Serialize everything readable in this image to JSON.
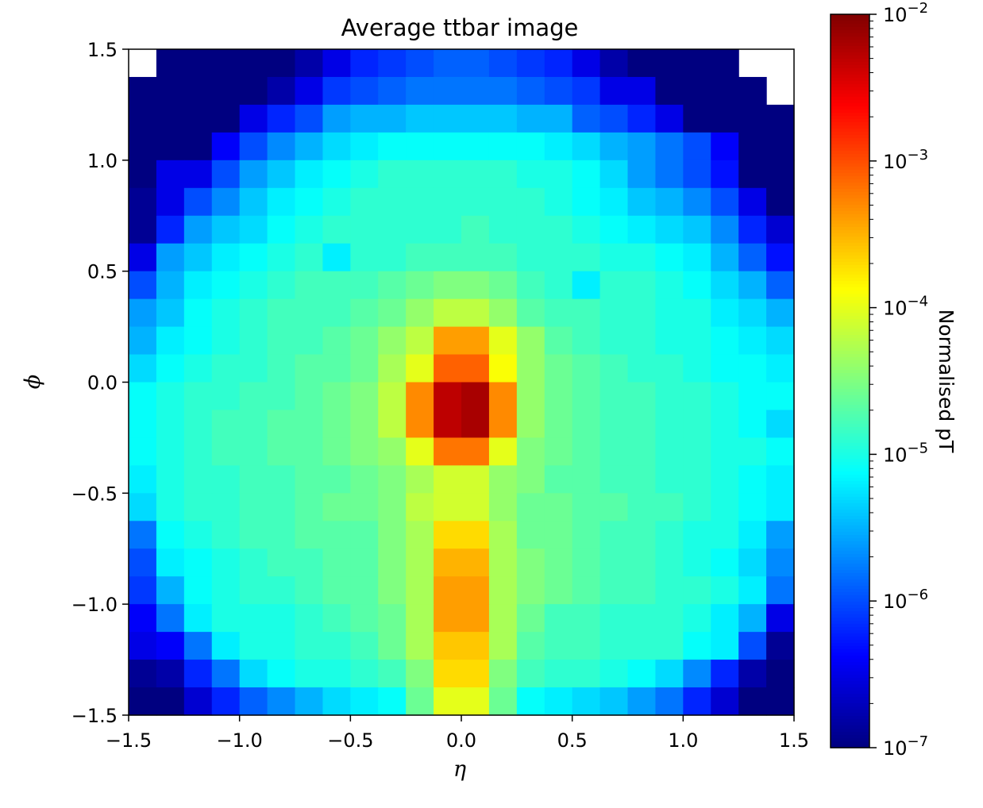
{
  "chart_data": {
    "type": "heatmap",
    "title": "Average ttbar image",
    "xlabel": "η",
    "ylabel": "ϕ",
    "xlim": [
      -1.5,
      1.5
    ],
    "ylim": [
      -1.5,
      1.5
    ],
    "x_ticks": [
      -1.5,
      -1.0,
      -0.5,
      0.0,
      0.5,
      1.0,
      1.5
    ],
    "y_ticks": [
      -1.5,
      -1.0,
      -0.5,
      0.0,
      0.5,
      1.0,
      1.5
    ],
    "x_tick_labels": [
      "−1.5",
      "−1.0",
      "−0.5",
      "0.0",
      "0.5",
      "1.0",
      "1.5"
    ],
    "y_tick_labels": [
      "−1.5",
      "−1.0",
      "−0.5",
      "0.0",
      "0.5",
      "1.0",
      "1.5"
    ],
    "grid": false,
    "colormap": "jet",
    "color_scale": "log",
    "colorbar": {
      "label": "Normalised pT",
      "min": 1e-07,
      "max": 0.01,
      "tick_exponents": [
        -2,
        -3,
        -4,
        -5,
        -6,
        -7
      ],
      "tick_base": "10"
    },
    "n_bins": [
      24,
      24
    ],
    "row_order": "top-to-bottom (phi from 1.5 to -1.5)",
    "log10_values": [
      [
        null,
        -7.0,
        -7.0,
        -7.0,
        -7.0,
        -7.0,
        -6.8,
        -6.5,
        -6.2,
        -6.1,
        -6.0,
        -5.9,
        -5.9,
        -6.0,
        -6.1,
        -6.2,
        -6.5,
        -6.8,
        -7.0,
        -7.0,
        -7.0,
        -7.0,
        null,
        null
      ],
      [
        -7.0,
        -7.0,
        -7.0,
        -7.0,
        -7.0,
        -6.8,
        -6.5,
        -6.1,
        -6.0,
        -5.9,
        -5.8,
        -5.8,
        -5.8,
        -5.8,
        -5.9,
        -6.0,
        -6.1,
        -6.5,
        -6.5,
        -7.0,
        -7.0,
        -7.0,
        -7.0,
        null
      ],
      [
        -7.0,
        -7.0,
        -7.0,
        -7.0,
        -6.5,
        -6.2,
        -6.0,
        -5.6,
        -5.5,
        -5.5,
        -5.4,
        -5.4,
        -5.4,
        -5.4,
        -5.5,
        -5.5,
        -5.9,
        -6.0,
        -6.2,
        -6.5,
        -7.0,
        -7.0,
        -7.0,
        -7.0
      ],
      [
        -7.0,
        -7.0,
        -7.0,
        -6.4,
        -6.0,
        -5.7,
        -5.5,
        -5.3,
        -5.2,
        -5.1,
        -5.1,
        -5.1,
        -5.1,
        -5.1,
        -5.1,
        -5.2,
        -5.3,
        -5.5,
        -5.6,
        -5.8,
        -6.0,
        -6.4,
        -7.0,
        -7.0
      ],
      [
        -7.0,
        -6.5,
        -6.5,
        -6.0,
        -5.6,
        -5.4,
        -5.2,
        -5.1,
        -5.0,
        -4.9,
        -4.9,
        -4.9,
        -4.9,
        -4.9,
        -5.0,
        -5.0,
        -5.1,
        -5.3,
        -5.6,
        -5.8,
        -6.0,
        -6.3,
        -7.0,
        -7.0
      ],
      [
        -6.9,
        -6.5,
        -6.0,
        -5.7,
        -5.4,
        -5.2,
        -5.1,
        -5.0,
        -4.9,
        -4.9,
        -4.9,
        -4.9,
        -4.9,
        -4.9,
        -4.9,
        -5.0,
        -5.1,
        -5.2,
        -5.4,
        -5.5,
        -5.7,
        -6.0,
        -6.5,
        -7.0
      ],
      [
        -6.9,
        -6.2,
        -5.6,
        -5.4,
        -5.3,
        -5.1,
        -5.0,
        -4.9,
        -4.9,
        -4.9,
        -4.9,
        -4.9,
        -4.8,
        -4.9,
        -4.9,
        -4.9,
        -5.0,
        -5.1,
        -5.2,
        -5.3,
        -5.4,
        -5.7,
        -6.2,
        -6.6
      ],
      [
        -6.5,
        -5.6,
        -5.4,
        -5.2,
        -5.1,
        -5.0,
        -4.9,
        -5.2,
        -4.9,
        -4.9,
        -4.8,
        -4.8,
        -4.8,
        -4.8,
        -4.9,
        -4.9,
        -4.9,
        -5.0,
        -5.0,
        -5.1,
        -5.2,
        -5.5,
        -5.9,
        -6.3
      ],
      [
        -6.0,
        -5.5,
        -5.2,
        -5.1,
        -5.0,
        -4.9,
        -4.8,
        -4.8,
        -4.8,
        -4.7,
        -4.6,
        -4.5,
        -4.5,
        -4.6,
        -4.8,
        -4.9,
        -5.2,
        -4.9,
        -4.9,
        -5.0,
        -5.1,
        -5.3,
        -5.5,
        -5.9
      ],
      [
        -5.6,
        -5.4,
        -5.1,
        -5.0,
        -4.9,
        -4.8,
        -4.8,
        -4.8,
        -4.7,
        -4.6,
        -4.4,
        -4.2,
        -4.2,
        -4.4,
        -4.7,
        -4.8,
        -4.8,
        -4.9,
        -4.9,
        -5.0,
        -5.0,
        -5.2,
        -5.3,
        -5.5
      ],
      [
        -5.5,
        -5.2,
        -5.1,
        -5.0,
        -4.9,
        -4.8,
        -4.8,
        -4.7,
        -4.6,
        -4.4,
        -4.2,
        -3.4,
        -3.4,
        -4.0,
        -4.4,
        -4.7,
        -4.8,
        -4.9,
        -4.9,
        -5.0,
        -5.0,
        -5.1,
        -5.2,
        -5.3
      ],
      [
        -5.3,
        -5.1,
        -5.0,
        -4.9,
        -4.9,
        -4.8,
        -4.7,
        -4.7,
        -4.6,
        -4.3,
        -4.0,
        -3.1,
        -3.1,
        -3.9,
        -4.4,
        -4.6,
        -4.7,
        -4.8,
        -4.9,
        -4.9,
        -5.0,
        -5.1,
        -5.1,
        -5.2
      ],
      [
        -5.1,
        -5.0,
        -4.9,
        -4.9,
        -4.8,
        -4.8,
        -4.7,
        -4.6,
        -4.5,
        -4.2,
        -3.3,
        -2.3,
        -2.2,
        -3.3,
        -4.4,
        -4.6,
        -4.7,
        -4.8,
        -4.8,
        -4.9,
        -4.9,
        -5.0,
        -5.1,
        -5.1
      ],
      [
        -5.1,
        -5.0,
        -4.9,
        -4.8,
        -4.8,
        -4.7,
        -4.7,
        -4.6,
        -4.5,
        -4.2,
        -3.3,
        -2.3,
        -2.2,
        -3.3,
        -4.4,
        -4.6,
        -4.7,
        -4.8,
        -4.8,
        -4.9,
        -4.9,
        -5.0,
        -5.1,
        -5.3
      ],
      [
        -5.1,
        -5.0,
        -4.9,
        -4.8,
        -4.8,
        -4.7,
        -4.7,
        -4.6,
        -4.5,
        -4.4,
        -4.0,
        -3.2,
        -3.2,
        -4.0,
        -4.5,
        -4.6,
        -4.7,
        -4.8,
        -4.8,
        -4.9,
        -4.9,
        -5.0,
        -5.0,
        -5.1
      ],
      [
        -5.2,
        -5.0,
        -4.9,
        -4.9,
        -4.8,
        -4.8,
        -4.7,
        -4.7,
        -4.6,
        -4.5,
        -4.3,
        -4.1,
        -4.1,
        -4.4,
        -4.5,
        -4.7,
        -4.7,
        -4.8,
        -4.8,
        -4.9,
        -4.9,
        -5.0,
        -5.1,
        -5.2
      ],
      [
        -5.3,
        -5.0,
        -4.9,
        -4.9,
        -4.8,
        -4.8,
        -4.7,
        -4.6,
        -4.6,
        -4.5,
        -4.2,
        -4.1,
        -4.1,
        -4.4,
        -4.6,
        -4.6,
        -4.7,
        -4.7,
        -4.8,
        -4.8,
        -4.9,
        -5.0,
        -5.1,
        -5.2
      ],
      [
        -5.8,
        -5.1,
        -5.0,
        -4.9,
        -4.8,
        -4.8,
        -4.7,
        -4.7,
        -4.7,
        -4.5,
        -4.3,
        -3.7,
        -3.7,
        -4.3,
        -4.6,
        -4.6,
        -4.7,
        -4.8,
        -4.8,
        -4.9,
        -5.0,
        -5.0,
        -5.2,
        -5.6
      ],
      [
        -6.0,
        -5.2,
        -5.1,
        -5.0,
        -4.9,
        -4.8,
        -4.8,
        -4.7,
        -4.7,
        -4.5,
        -4.3,
        -3.5,
        -3.5,
        -4.3,
        -4.5,
        -4.6,
        -4.7,
        -4.8,
        -4.8,
        -4.9,
        -5.0,
        -5.1,
        -5.3,
        -5.7
      ],
      [
        -6.1,
        -5.5,
        -5.1,
        -5.0,
        -4.9,
        -4.9,
        -4.8,
        -4.7,
        -4.7,
        -4.5,
        -4.3,
        -3.4,
        -3.4,
        -4.3,
        -4.5,
        -4.6,
        -4.7,
        -4.8,
        -4.8,
        -4.9,
        -4.9,
        -5.0,
        -5.2,
        -5.8
      ],
      [
        -6.4,
        -5.8,
        -5.2,
        -5.0,
        -5.0,
        -5.0,
        -4.9,
        -4.8,
        -4.7,
        -4.6,
        -4.3,
        -3.4,
        -3.4,
        -4.3,
        -4.6,
        -4.8,
        -4.8,
        -4.9,
        -4.9,
        -4.9,
        -5.0,
        -5.2,
        -5.5,
        -6.5
      ],
      [
        -6.5,
        -6.4,
        -5.8,
        -5.2,
        -5.0,
        -5.0,
        -4.9,
        -4.9,
        -4.8,
        -4.6,
        -4.3,
        -3.6,
        -3.6,
        -4.3,
        -4.7,
        -4.8,
        -4.8,
        -4.9,
        -4.9,
        -4.9,
        -5.1,
        -5.2,
        -6.0,
        -6.9
      ],
      [
        -6.9,
        -6.8,
        -6.2,
        -5.8,
        -5.3,
        -5.1,
        -5.0,
        -5.0,
        -4.9,
        -4.8,
        -4.5,
        -3.7,
        -3.7,
        -4.5,
        -4.8,
        -4.9,
        -4.9,
        -5.0,
        -5.1,
        -5.3,
        -5.7,
        -6.2,
        -6.8,
        -7.0
      ],
      [
        -7.0,
        -7.0,
        -6.6,
        -6.2,
        -5.9,
        -5.7,
        -5.5,
        -5.3,
        -5.2,
        -5.1,
        -4.6,
        -4.0,
        -4.0,
        -4.6,
        -5.1,
        -5.2,
        -5.3,
        -5.4,
        -5.6,
        -5.8,
        -6.2,
        -6.6,
        -7.0,
        -7.0
      ]
    ]
  }
}
